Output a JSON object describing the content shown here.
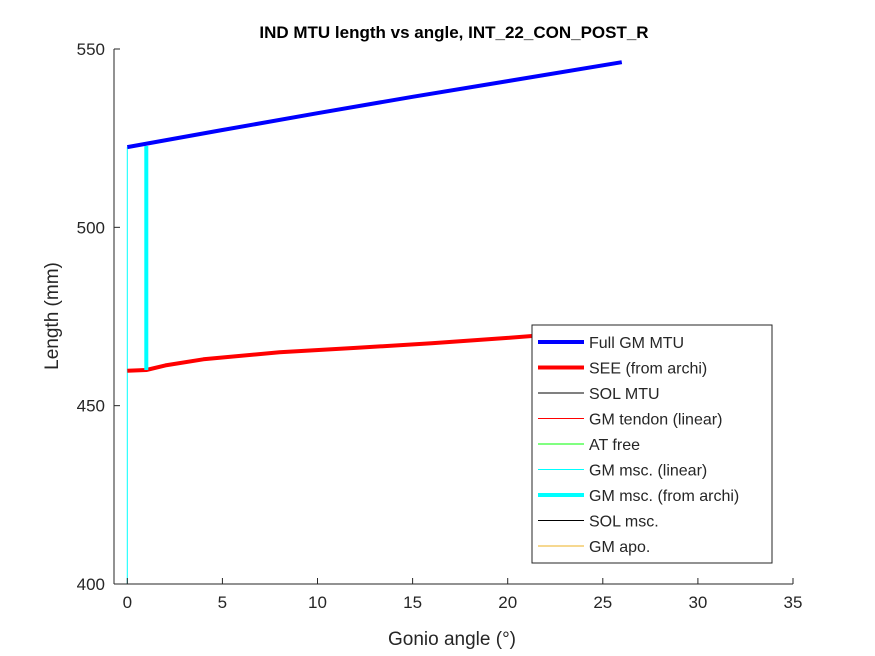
{
  "chart_data": {
    "type": "line",
    "title": "IND MTU length vs angle, INT_22_CON_POST_R",
    "xlabel": "Gonio angle (°)",
    "ylabel": "Length (mm)",
    "xlim": [
      -0.7,
      35
    ],
    "ylim": [
      400,
      550
    ],
    "xticks": [
      0,
      5,
      10,
      15,
      20,
      25,
      30,
      35
    ],
    "yticks": [
      400,
      450,
      500,
      550
    ],
    "xtick_labels": [
      "0",
      "5",
      "10",
      "15",
      "20",
      "25",
      "30",
      "35"
    ],
    "ytick_labels": [
      "400",
      "450",
      "500",
      "550"
    ],
    "grid": false,
    "legend_position": "bottom-right",
    "series": [
      {
        "name": "Full GM MTU",
        "color": "#0000ff",
        "width": "thick",
        "x": [
          0,
          5,
          10,
          15,
          20,
          26
        ],
        "y": [
          522.5,
          527.3,
          532.0,
          536.6,
          541.0,
          546.3
        ]
      },
      {
        "name": "SEE (from archi)",
        "color": "#ff0000",
        "width": "thick",
        "x": [
          0,
          1,
          2,
          4,
          8,
          12,
          16,
          20,
          26
        ],
        "y": [
          459.8,
          460.0,
          461.3,
          463.0,
          465.0,
          466.2,
          467.5,
          469.0,
          471.5
        ]
      },
      {
        "name": "SOL MTU",
        "color": "#000000",
        "width": "thin",
        "x": [],
        "y": []
      },
      {
        "name": "GM tendon (linear)",
        "color": "#ff0000",
        "width": "thin",
        "x": [],
        "y": []
      },
      {
        "name": "AT free",
        "color": "#00ff00",
        "width": "thin",
        "x": [],
        "y": []
      },
      {
        "name": "GM msc. (linear)",
        "color": "#00ffff",
        "width": "thin",
        "x": [
          0,
          0
        ],
        "y": [
          400,
          522.5
        ]
      },
      {
        "name": "GM msc. (from archi)",
        "color": "#00ffff",
        "width": "thick",
        "x": [
          1,
          1
        ],
        "y": [
          460.0,
          522.8
        ]
      },
      {
        "name": "SOL msc.",
        "color": "#000000",
        "width": "thin",
        "x": [],
        "y": []
      },
      {
        "name": "GM apo.",
        "color": "#edb120",
        "width": "thin",
        "x": [],
        "y": []
      }
    ]
  }
}
